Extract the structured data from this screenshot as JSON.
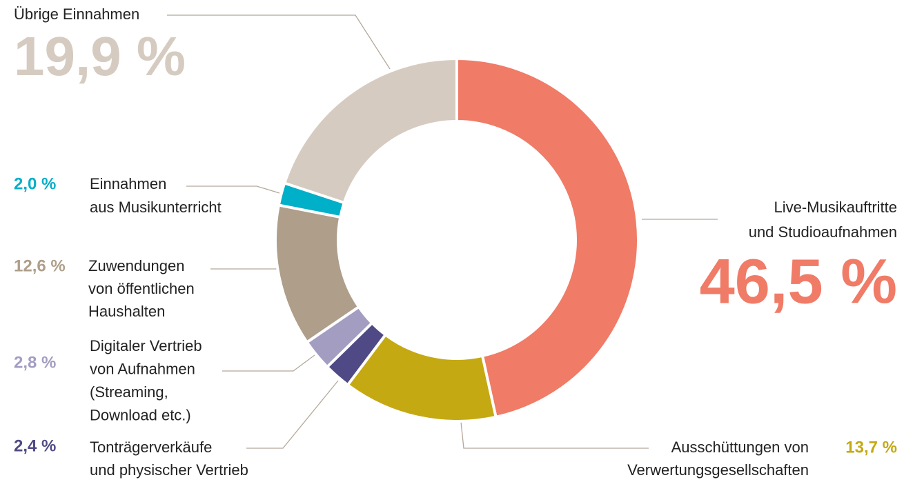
{
  "chart_data": {
    "type": "donut",
    "categories": [
      [
        "Live-Musikauftritte",
        "und Studioaufnahmen"
      ],
      [
        "Ausschüttungen von",
        "Verwertungsgesellschaften"
      ],
      [
        "Tonträgerverkäufe",
        "und physischer Vertrieb"
      ],
      [
        "Digitaler Vertrieb",
        "von Aufnahmen",
        "(Streaming,",
        "Download etc.)"
      ],
      [
        "Zuwendungen",
        "von öffentlichen",
        "Haushalten"
      ],
      [
        "Einnahmen",
        "aus Musikunterricht"
      ],
      [
        "Übrige Einnahmen"
      ]
    ],
    "values": [
      46.5,
      13.7,
      2.4,
      2.8,
      12.6,
      2.0,
      19.9
    ],
    "value_labels": [
      "46,5 %",
      "13,7 %",
      "2,4 %",
      "2,8 %",
      "12,6 %",
      "2,0 %",
      "19,9 %"
    ],
    "colors": [
      "#f07b67",
      "#c4a912",
      "#4f4a85",
      "#a39dc2",
      "#ae9e8a",
      "#00afc8",
      "#d5cbc0"
    ]
  }
}
